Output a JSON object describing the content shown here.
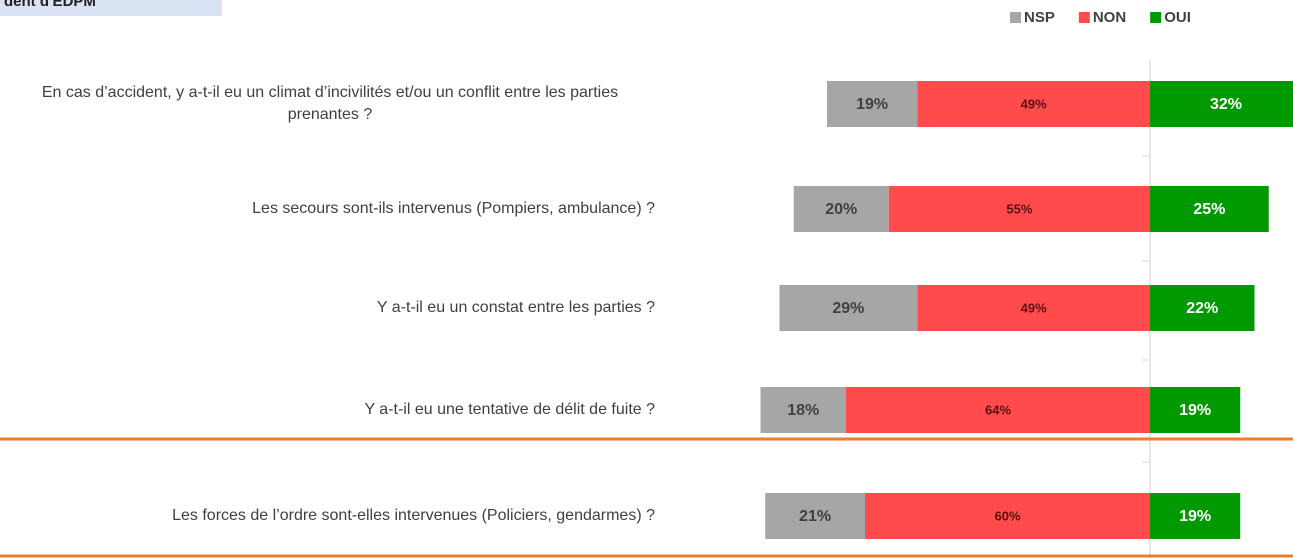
{
  "header": "dent d'EDPM",
  "chart_data": {
    "type": "diverging_bar",
    "categories": [
      "En cas d’accident, y a-t-il eu un climat d’incivilités et/ou un conflit entre les parties prenantes ?",
      "Les secours sont-ils intervenus (Pompiers, ambulance) ?",
      "Y a-t-il eu un constat entre les parties ?",
      "Y a-t-il eu une tentative de délit de fuite ?",
      "Les forces de l’ordre sont-elles intervenues (Policiers, gendarmes) ?"
    ],
    "series": [
      {
        "name": "NSP",
        "color": "#a6a6a6",
        "values": [
          19,
          20,
          29,
          18,
          21
        ],
        "value_labels": [
          "19%",
          "20%",
          "29%",
          "18%",
          "21%"
        ]
      },
      {
        "name": "NON",
        "color": "#ff4b4b",
        "values": [
          49,
          55,
          49,
          64,
          60
        ],
        "value_labels": [
          "49%",
          "55%",
          "49%",
          "64%",
          "60%"
        ]
      },
      {
        "name": "OUI",
        "color": "#009a00",
        "values": [
          32,
          25,
          22,
          19,
          19
        ],
        "value_labels": [
          "32%",
          "25%",
          "22%",
          "19%",
          "19%"
        ]
      }
    ],
    "legend": "top-right"
  }
}
